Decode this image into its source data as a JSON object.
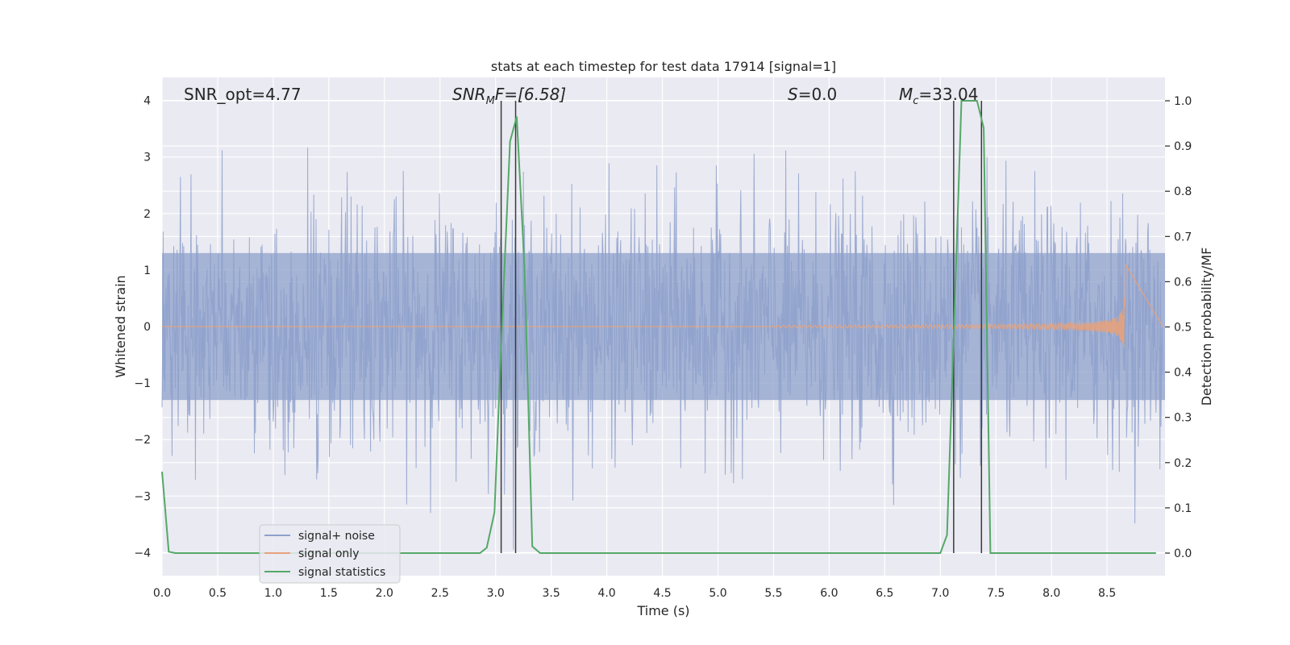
{
  "chart_data": {
    "type": "line",
    "title": "stats at each timestep for test data 17914 [signal=1]",
    "xlabel": "Time (s)",
    "ylabel_left": "Whitened strain",
    "ylabel_right": "Detection probability/MF",
    "xlim": [
      0.0,
      9.0
    ],
    "ylim_left": [
      -4.4,
      4.4
    ],
    "ylim_right": [
      -0.05,
      1.05
    ],
    "xticks": [
      0.0,
      0.5,
      1.0,
      1.5,
      2.0,
      2.5,
      3.0,
      3.5,
      4.0,
      4.5,
      5.0,
      5.5,
      6.0,
      6.5,
      7.0,
      7.5,
      8.0,
      8.5
    ],
    "yticks_left": [
      -4,
      -3,
      -2,
      -1,
      0,
      1,
      2,
      3,
      4
    ],
    "yticks_right": [
      0.0,
      0.1,
      0.2,
      0.3,
      0.4,
      0.5,
      0.6,
      0.7,
      0.8,
      0.9,
      1.0
    ],
    "xtick_labels": [
      "0.0",
      "0.5",
      "1.0",
      "1.5",
      "2.0",
      "2.5",
      "3.0",
      "3.5",
      "4.0",
      "4.5",
      "5.0",
      "5.5",
      "6.0",
      "6.5",
      "7.0",
      "7.5",
      "8.0",
      "8.5"
    ],
    "ytick_labels_left": [
      "−4",
      "−3",
      "−2",
      "−1",
      "0",
      "1",
      "2",
      "3",
      "4"
    ],
    "ytick_labels_right": [
      "0.0",
      "0.1",
      "0.2",
      "0.3",
      "0.4",
      "0.5",
      "0.6",
      "0.7",
      "0.8",
      "0.9",
      "1.0"
    ],
    "grid": true,
    "legend_position": "lower-left",
    "annotations": {
      "snr_opt": "SNR_opt=4.77",
      "snr_mf_main": "SNR",
      "snr_mf_sub": "M",
      "snr_mf_rest": "F=[6.58]",
      "s_main": "S",
      "s_rest": "=0.0",
      "mc_main": "M",
      "mc_sub": "c",
      "mc_rest": "=33.04"
    },
    "series": [
      {
        "name": "signal+ noise",
        "color": "#8da0cb",
        "axis": "left",
        "description_stats": {
          "dense_band_lo": -1.3,
          "dense_band_hi": 1.3,
          "x_start": 0.0,
          "x_end": 9.0
        }
      },
      {
        "name": "signal only",
        "color": "#e5a27c",
        "axis": "left",
        "chirp": {
          "t_start": 5.5,
          "t_end": 8.67,
          "peak_amplitude": 1.1
        }
      },
      {
        "name": "signal statistics",
        "color": "#55a868",
        "axis": "right",
        "x": [
          0.0,
          0.06,
          0.12,
          0.5,
          1.0,
          1.5,
          2.0,
          2.5,
          2.86,
          2.92,
          2.99,
          3.06,
          3.13,
          3.19,
          3.26,
          3.33,
          3.4,
          4.0,
          5.0,
          6.0,
          7.0,
          7.06,
          7.13,
          7.19,
          7.26,
          7.33,
          7.39,
          7.45,
          8.0,
          8.5,
          8.94
        ],
        "y": [
          0.18,
          0.003,
          0.0,
          0.0,
          0.0,
          0.0,
          0.0,
          0.0,
          0.0,
          0.012,
          0.09,
          0.52,
          0.91,
          0.965,
          0.63,
          0.015,
          0.0,
          0.0,
          0.0,
          0.0,
          0.0,
          0.04,
          0.55,
          1.0,
          1.0,
          1.0,
          0.94,
          0.0,
          0.0,
          0.0,
          0.0
        ]
      }
    ],
    "vertical_markers": [
      3.05,
      3.18,
      7.12,
      7.37
    ]
  }
}
